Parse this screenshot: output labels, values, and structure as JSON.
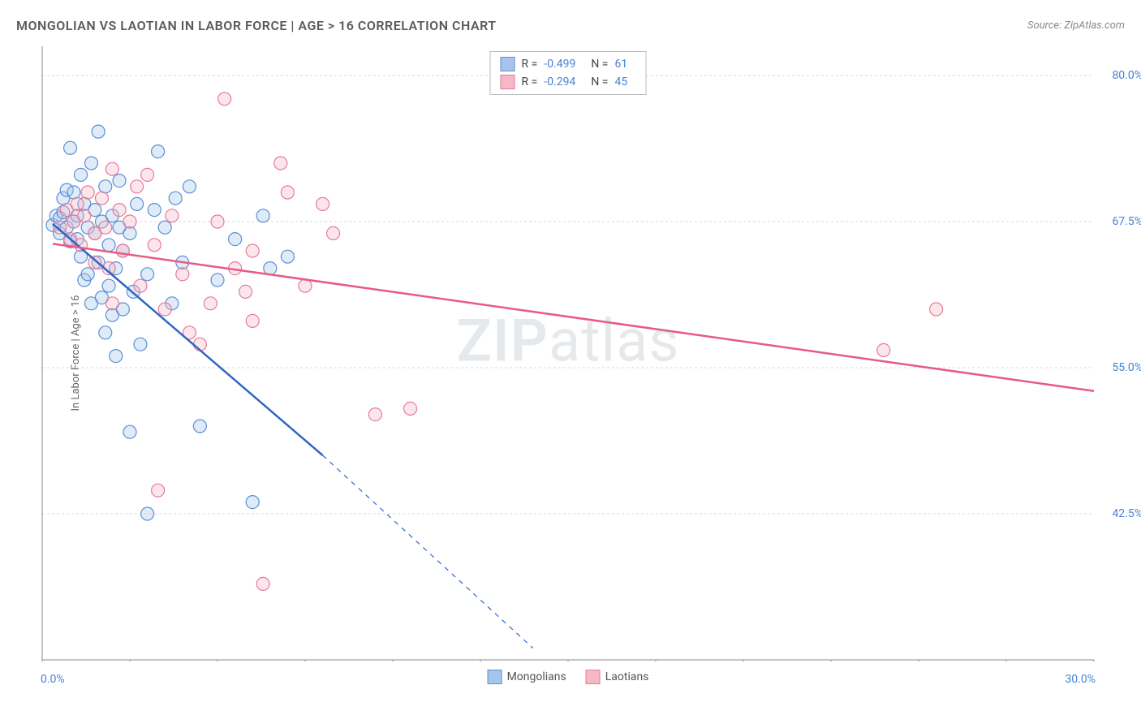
{
  "title": "MONGOLIAN VS LAOTIAN IN LABOR FORCE | AGE > 16 CORRELATION CHART",
  "source": "Source: ZipAtlas.com",
  "watermark_bold": "ZIP",
  "watermark_light": "atlas",
  "ylabel": "In Labor Force | Age > 16",
  "chart": {
    "type": "scatter",
    "background_color": "#ffffff",
    "grid_color": "#d8d8d8",
    "axis_color": "#888888",
    "tick_color": "#888888",
    "xlim": [
      0,
      30
    ],
    "ylim": [
      30,
      82.5
    ],
    "x_ticks": [
      0,
      2.5,
      5,
      7.5,
      10,
      12.5,
      15,
      17.5,
      20,
      22.5,
      25,
      27.5,
      30
    ],
    "x_tick_labels_shown": {
      "0": "0.0%",
      "30": "30.0%"
    },
    "y_ticks": [
      42.5,
      55.0,
      67.5,
      80.0
    ],
    "y_tick_labels": [
      "42.5%",
      "55.0%",
      "67.5%",
      "80.0%"
    ],
    "label_color": "#4682d8",
    "label_fontsize": 14,
    "marker_radius": 8,
    "marker_stroke_width": 1.2,
    "marker_fill_opacity": 0.35,
    "line_width": 2.5,
    "series": [
      {
        "name": "Mongolians",
        "color_fill": "#a7c5ec",
        "color_stroke": "#5b8fd6",
        "line_color": "#2f66c4",
        "R": "-0.499",
        "N": "61",
        "regression": {
          "x1": 0.3,
          "y1": 67.3,
          "x2": 8.0,
          "y2": 47.5,
          "x2_dash": 14.0,
          "y2_dash": 31.0
        },
        "points": [
          [
            0.3,
            67.2
          ],
          [
            0.4,
            68.0
          ],
          [
            0.5,
            67.8
          ],
          [
            0.5,
            66.5
          ],
          [
            0.6,
            68.3
          ],
          [
            0.6,
            69.5
          ],
          [
            0.7,
            67.0
          ],
          [
            0.7,
            70.2
          ],
          [
            0.8,
            73.8
          ],
          [
            0.8,
            65.8
          ],
          [
            0.9,
            67.5
          ],
          [
            0.9,
            70.0
          ],
          [
            1.0,
            68.0
          ],
          [
            1.0,
            66.0
          ],
          [
            1.1,
            71.5
          ],
          [
            1.1,
            64.5
          ],
          [
            1.2,
            69.0
          ],
          [
            1.2,
            62.5
          ],
          [
            1.3,
            67.0
          ],
          [
            1.3,
            63.0
          ],
          [
            1.4,
            72.5
          ],
          [
            1.4,
            60.5
          ],
          [
            1.5,
            68.5
          ],
          [
            1.5,
            66.5
          ],
          [
            1.6,
            75.2
          ],
          [
            1.6,
            64.0
          ],
          [
            1.7,
            61.0
          ],
          [
            1.7,
            67.5
          ],
          [
            1.8,
            70.5
          ],
          [
            1.8,
            58.0
          ],
          [
            1.9,
            65.5
          ],
          [
            1.9,
            62.0
          ],
          [
            2.0,
            68.0
          ],
          [
            2.0,
            59.5
          ],
          [
            2.1,
            63.5
          ],
          [
            2.1,
            56.0
          ],
          [
            2.2,
            71.0
          ],
          [
            2.2,
            67.0
          ],
          [
            2.3,
            60.0
          ],
          [
            2.3,
            65.0
          ],
          [
            2.5,
            66.5
          ],
          [
            2.5,
            49.5
          ],
          [
            2.6,
            61.5
          ],
          [
            2.7,
            69.0
          ],
          [
            2.8,
            57.0
          ],
          [
            3.0,
            63.0
          ],
          [
            3.0,
            42.5
          ],
          [
            3.2,
            68.5
          ],
          [
            3.3,
            73.5
          ],
          [
            3.5,
            67.0
          ],
          [
            3.7,
            60.5
          ],
          [
            3.8,
            69.5
          ],
          [
            4.0,
            64.0
          ],
          [
            4.2,
            70.5
          ],
          [
            4.5,
            50.0
          ],
          [
            5.0,
            62.5
          ],
          [
            5.5,
            66.0
          ],
          [
            6.0,
            43.5
          ],
          [
            6.3,
            68.0
          ],
          [
            6.5,
            63.5
          ],
          [
            7.0,
            64.5
          ]
        ]
      },
      {
        "name": "Laotians",
        "color_fill": "#f4b8c7",
        "color_stroke": "#e77a9a",
        "line_color": "#e85a85",
        "R": "-0.294",
        "N": "45",
        "regression": {
          "x1": 0.3,
          "y1": 65.6,
          "x2": 30.0,
          "y2": 53.0
        },
        "points": [
          [
            0.5,
            67.0
          ],
          [
            0.7,
            68.5
          ],
          [
            0.8,
            66.0
          ],
          [
            0.9,
            67.5
          ],
          [
            1.0,
            69.0
          ],
          [
            1.1,
            65.5
          ],
          [
            1.2,
            68.0
          ],
          [
            1.3,
            70.0
          ],
          [
            1.5,
            66.5
          ],
          [
            1.5,
            64.0
          ],
          [
            1.7,
            69.5
          ],
          [
            1.8,
            67.0
          ],
          [
            1.9,
            63.5
          ],
          [
            2.0,
            72.0
          ],
          [
            2.0,
            60.5
          ],
          [
            2.2,
            68.5
          ],
          [
            2.3,
            65.0
          ],
          [
            2.5,
            67.5
          ],
          [
            2.7,
            70.5
          ],
          [
            2.8,
            62.0
          ],
          [
            3.0,
            71.5
          ],
          [
            3.2,
            65.5
          ],
          [
            3.3,
            44.5
          ],
          [
            3.5,
            60.0
          ],
          [
            3.7,
            68.0
          ],
          [
            4.0,
            63.0
          ],
          [
            4.2,
            58.0
          ],
          [
            4.5,
            57.0
          ],
          [
            4.8,
            60.5
          ],
          [
            5.0,
            67.5
          ],
          [
            5.2,
            78.0
          ],
          [
            5.5,
            63.5
          ],
          [
            5.8,
            61.5
          ],
          [
            6.0,
            65.0
          ],
          [
            6.3,
            36.5
          ],
          [
            6.8,
            72.5
          ],
          [
            7.0,
            70.0
          ],
          [
            7.5,
            62.0
          ],
          [
            8.0,
            69.0
          ],
          [
            8.3,
            66.5
          ],
          [
            9.5,
            51.0
          ],
          [
            10.5,
            51.5
          ],
          [
            24.0,
            56.5
          ],
          [
            25.5,
            60.0
          ],
          [
            6.0,
            59.0
          ]
        ]
      }
    ]
  },
  "bottom_legend": [
    {
      "label": "Mongolians",
      "fill": "#a7c5ec",
      "stroke": "#5b8fd6"
    },
    {
      "label": "Laotians",
      "fill": "#f4b8c7",
      "stroke": "#e77a9a"
    }
  ]
}
